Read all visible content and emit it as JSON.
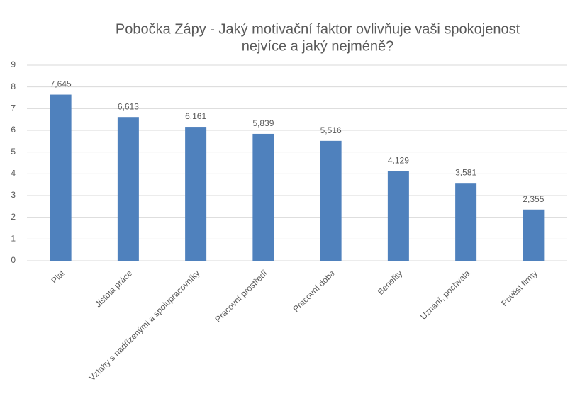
{
  "chart_data": {
    "type": "bar",
    "title": [
      "Pobočka Zápy - Jaký motivační faktor ovlivňuje vaši spokojenost",
      "nejvíce a jaký nejméně?"
    ],
    "categories": [
      "Plat",
      "Jistota práce",
      "Vztahy s nadřízenými a spolupracovníky",
      "Pracovní prostředí",
      "Pracovní doba",
      "Benefity",
      "Uznání, pochvala",
      "Pověst firmy"
    ],
    "values": [
      7.645,
      6.613,
      6.161,
      5.839,
      5.516,
      4.129,
      3.581,
      2.355
    ],
    "value_labels": [
      "7,645",
      "6,613",
      "6,161",
      "5,839",
      "5,516",
      "4,129",
      "3,581",
      "2,355"
    ],
    "color": "#4f81bd",
    "ylim": [
      0,
      9
    ],
    "yticks": [
      0,
      1,
      2,
      3,
      4,
      5,
      6,
      7,
      8,
      9
    ],
    "grid": true
  }
}
